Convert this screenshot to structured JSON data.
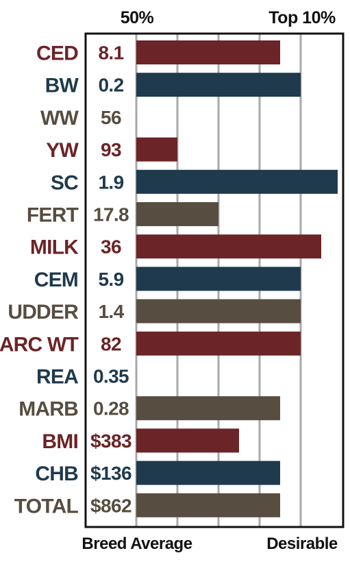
{
  "colors": {
    "red": "#6b2427",
    "blue": "#1f3a4d",
    "brown": "#574d40",
    "gridline": "#a9a9a9",
    "frame": "#111111"
  },
  "chart_data": {
    "type": "bar",
    "orientation": "horizontal",
    "title": "",
    "top_labels": {
      "left": "50%",
      "right": "Top 10%"
    },
    "bottom_labels": {
      "left": "Breed Average",
      "right": "Desirable"
    },
    "scale_units": "relative (0 = Breed Average / 50%, 4 = Top 10% / Desirable)",
    "xlim": [
      0,
      4.9
    ],
    "grid": true,
    "rows": [
      {
        "trait": "CED",
        "value": "8.1",
        "bar": 3.5,
        "color": "red"
      },
      {
        "trait": "BW",
        "value": "0.2",
        "bar": 4.0,
        "color": "blue"
      },
      {
        "trait": "WW",
        "value": "56",
        "bar": 0,
        "color": "brown"
      },
      {
        "trait": "YW",
        "value": "93",
        "bar": 1.0,
        "color": "red"
      },
      {
        "trait": "SC",
        "value": "1.9",
        "bar": 4.9,
        "color": "blue"
      },
      {
        "trait": "FERT",
        "value": "17.8",
        "bar": 2.0,
        "color": "brown"
      },
      {
        "trait": "MILK",
        "value": "36",
        "bar": 4.5,
        "color": "red"
      },
      {
        "trait": "CEM",
        "value": "5.9",
        "bar": 4.0,
        "color": "blue"
      },
      {
        "trait": "UDDER",
        "value": "1.4",
        "bar": 4.0,
        "color": "brown"
      },
      {
        "trait": "CARC WT",
        "value": "82",
        "bar": 4.0,
        "color": "red"
      },
      {
        "trait": "REA",
        "value": "0.35",
        "bar": 0,
        "color": "blue"
      },
      {
        "trait": "MARB",
        "value": "0.28",
        "bar": 3.5,
        "color": "brown"
      },
      {
        "trait": "BMI",
        "value": "$383",
        "bar": 2.5,
        "color": "red"
      },
      {
        "trait": "CHB",
        "value": "$136",
        "bar": 3.5,
        "color": "blue"
      },
      {
        "trait": "TOTAL",
        "value": "$862",
        "bar": 3.5,
        "color": "brown"
      }
    ]
  }
}
